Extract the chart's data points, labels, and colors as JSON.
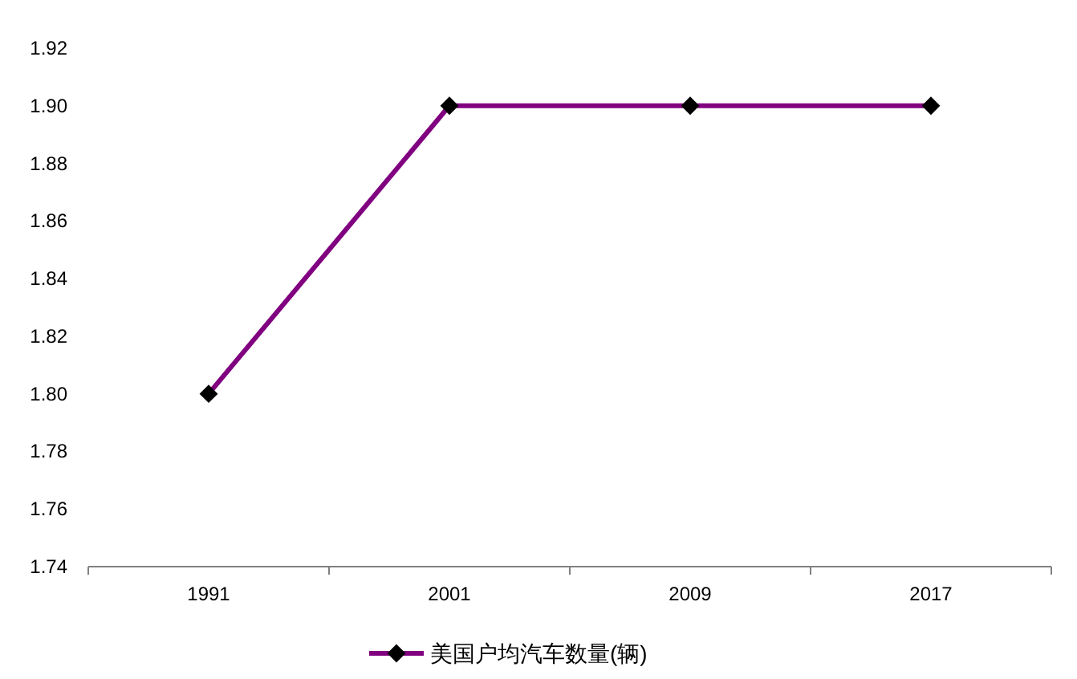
{
  "chart_data": {
    "type": "line",
    "categories": [
      "1991",
      "2001",
      "2009",
      "2017"
    ],
    "series": [
      {
        "name": "美国户均汽车数量(辆)",
        "color": "#800080",
        "values": [
          1.8,
          1.9,
          1.9,
          1.9
        ]
      }
    ],
    "ylim": [
      1.74,
      1.92
    ],
    "yticks": [
      {
        "value": 1.74,
        "label": "1.74"
      },
      {
        "value": 1.76,
        "label": "1.76"
      },
      {
        "value": 1.78,
        "label": "1.78"
      },
      {
        "value": 1.8,
        "label": "1.80"
      },
      {
        "value": 1.82,
        "label": "1.82"
      },
      {
        "value": 1.84,
        "label": "1.84"
      },
      {
        "value": 1.86,
        "label": "1.86"
      },
      {
        "value": 1.88,
        "label": "1.88"
      },
      {
        "value": 1.9,
        "label": "1.90"
      },
      {
        "value": 1.92,
        "label": "1.92"
      }
    ],
    "grid": false,
    "legend": "bottom",
    "marker": "diamond",
    "line_style": "solid"
  }
}
